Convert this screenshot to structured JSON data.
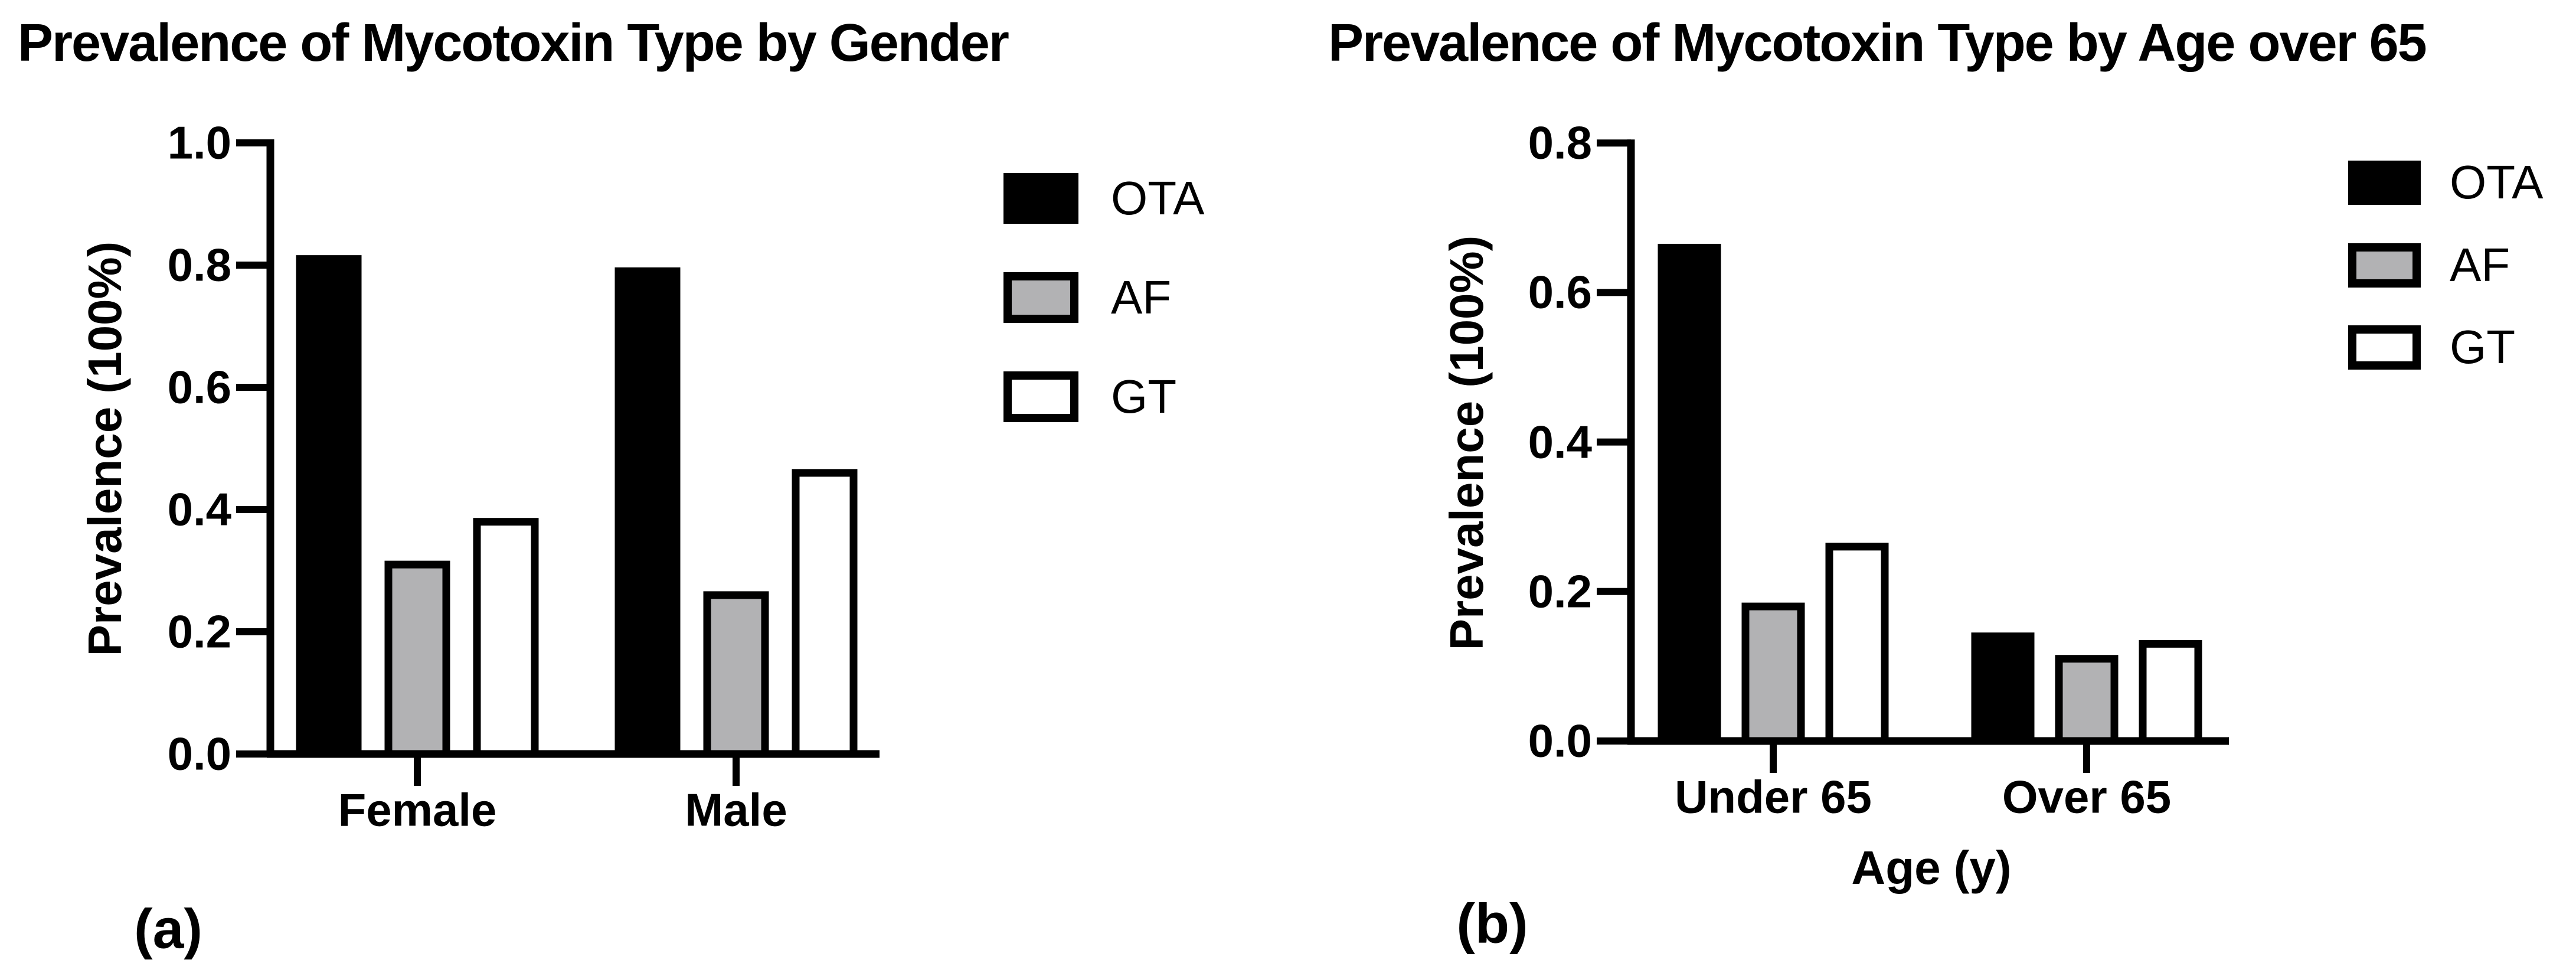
{
  "chart_data": [
    {
      "type": "bar",
      "panel_label": "(a)",
      "title": "Prevalence of Mycotoxin Type by Gender",
      "ylabel": "Prevalence (100%)",
      "xlabel": "",
      "categories": [
        "Female",
        "Male"
      ],
      "series": [
        {
          "name": "OTA",
          "fill": "#000000",
          "values": [
            0.81,
            0.79
          ]
        },
        {
          "name": "AF",
          "fill": "#b2b2b4",
          "values": [
            0.31,
            0.26
          ]
        },
        {
          "name": "GT",
          "fill": "#ffffff",
          "values": [
            0.38,
            0.46
          ]
        }
      ],
      "legend": [
        "OTA",
        "AF",
        "GT"
      ],
      "legend_position": "right",
      "ylim": [
        0,
        1.0
      ],
      "yticks": [
        0.0,
        0.2,
        0.4,
        0.6,
        0.8,
        1.0
      ],
      "ytick_labels": [
        "0.0",
        "0.2",
        "0.4",
        "0.6",
        "0.8",
        "1.0"
      ],
      "grid": false
    },
    {
      "type": "bar",
      "panel_label": "(b)",
      "title": "Prevalence of Mycotoxin Type by Age over 65",
      "ylabel": "Prevalence (100%)",
      "xlabel": "Age (y)",
      "categories": [
        "Under 65",
        "Over 65"
      ],
      "series": [
        {
          "name": "OTA",
          "fill": "#000000",
          "values": [
            0.66,
            0.14
          ]
        },
        {
          "name": "AF",
          "fill": "#b2b2b4",
          "values": [
            0.18,
            0.11
          ]
        },
        {
          "name": "GT",
          "fill": "#ffffff",
          "values": [
            0.26,
            0.13
          ]
        }
      ],
      "legend": [
        "OTA",
        "AF",
        "GT"
      ],
      "legend_position": "right",
      "ylim": [
        0,
        0.8
      ],
      "yticks": [
        0.0,
        0.2,
        0.4,
        0.6,
        0.8
      ],
      "ytick_labels": [
        "0.0",
        "0.2",
        "0.4",
        "0.6",
        "0.8"
      ],
      "grid": false
    }
  ],
  "colors": {
    "axis": "#000000",
    "background": "#ffffff",
    "bar_black": "#000000",
    "bar_gray": "#b2b2b4",
    "bar_white": "#ffffff"
  }
}
